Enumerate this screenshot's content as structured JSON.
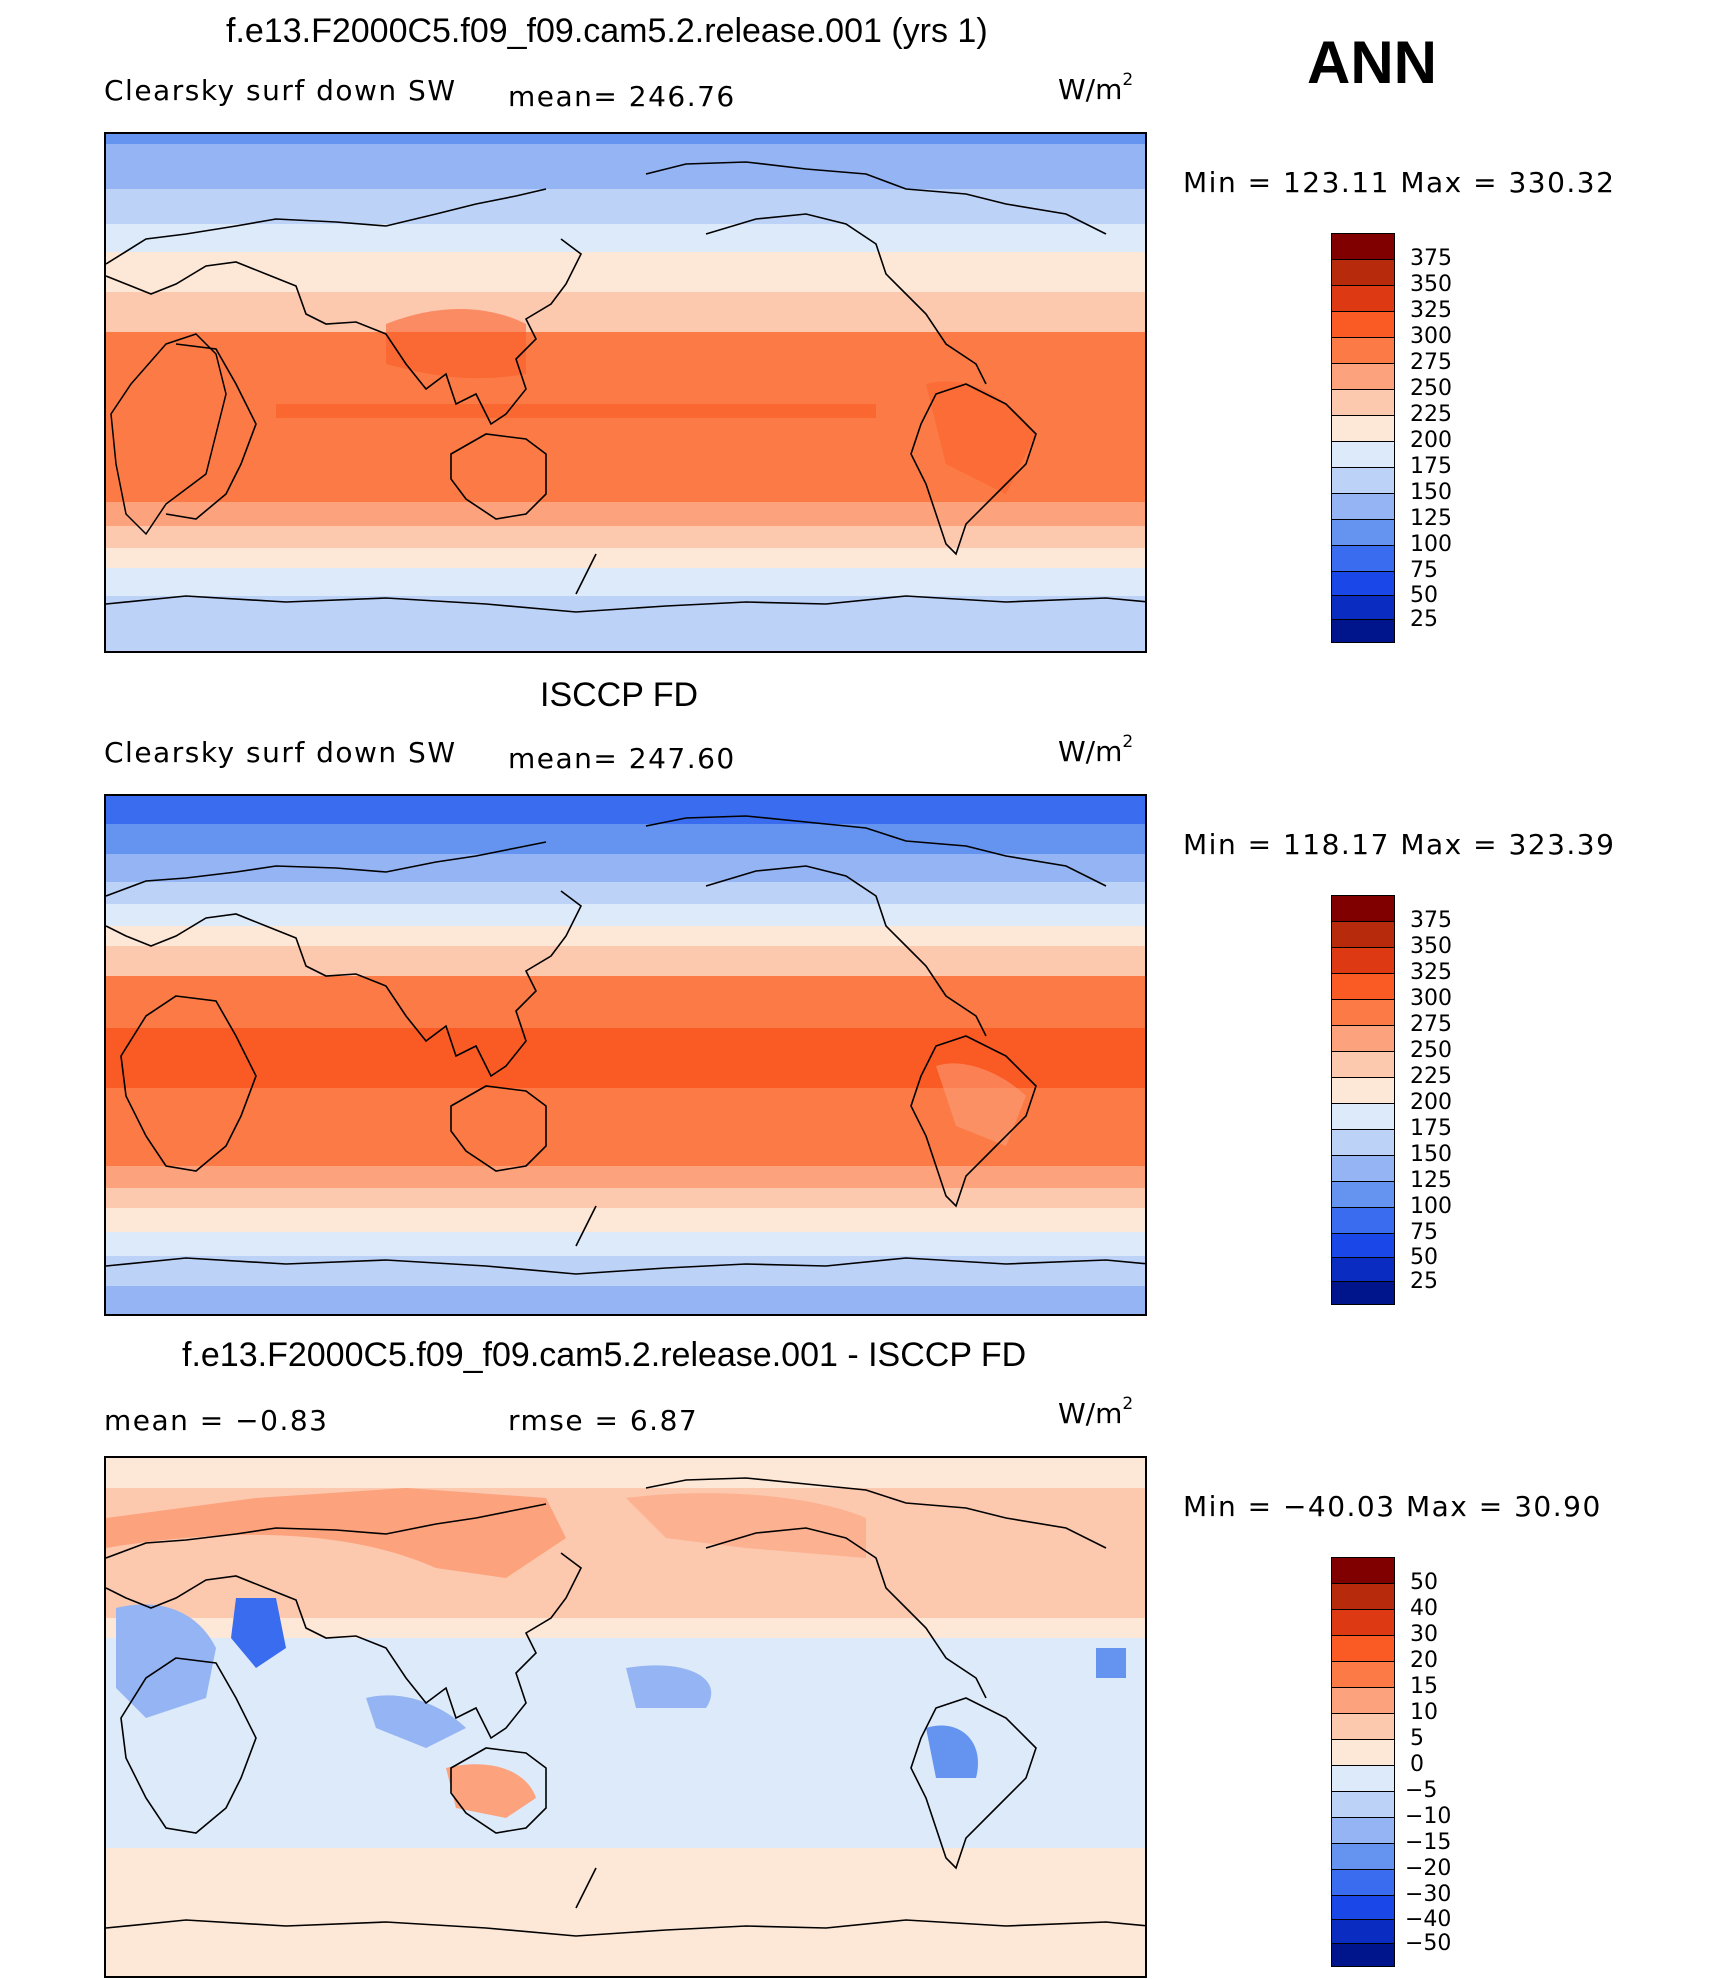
{
  "season": "ANN",
  "panels": [
    {
      "title": "f.e13.F2000C5.f09_f09.cam5.2.release.001 (yrs 1)",
      "left_label": "Clearsky surf down SW",
      "mid_label": "mean= 246.76",
      "units": "W/m",
      "units_sup": "2",
      "minmax": "Min = 123.11 Max = 330.32",
      "colorbar_labels": [
        "375",
        "350",
        "325",
        "300",
        "275",
        "250",
        "225",
        "200",
        "175",
        "150",
        "125",
        "100",
        "75",
        "50",
        "25"
      ]
    },
    {
      "title": "ISCCP FD",
      "left_label": "Clearsky surf down SW",
      "mid_label": "mean= 247.60",
      "units": "W/m",
      "units_sup": "2",
      "minmax": "Min = 118.17 Max = 323.39",
      "colorbar_labels": [
        "375",
        "350",
        "325",
        "300",
        "275",
        "250",
        "225",
        "200",
        "175",
        "150",
        "125",
        "100",
        "75",
        "50",
        "25"
      ]
    },
    {
      "title": "f.e13.F2000C5.f09_f09.cam5.2.release.001 - ISCCP FD",
      "left_label": "mean =  −0.83",
      "mid_label": "rmse =   6.87",
      "units": "W/m",
      "units_sup": "2",
      "minmax": "Min = −40.03 Max =   30.90",
      "colorbar_labels": [
        "50",
        "40",
        "30",
        "20",
        "15",
        "10",
        "5",
        "0",
        "−5",
        "−10",
        "−15",
        "−20",
        "−30",
        "−40",
        "−50"
      ]
    }
  ],
  "colorbar_colors": [
    "#800000",
    "#b82a0c",
    "#dd3a14",
    "#fa5a24",
    "#fb7a45",
    "#fca27d",
    "#fcc8ae",
    "#fde7d6",
    "#dceafa",
    "#bcd2f7",
    "#94b4f3",
    "#6494ef",
    "#3a6cf0",
    "#1a48e8",
    "#0b2cc0",
    "#00148c"
  ]
}
